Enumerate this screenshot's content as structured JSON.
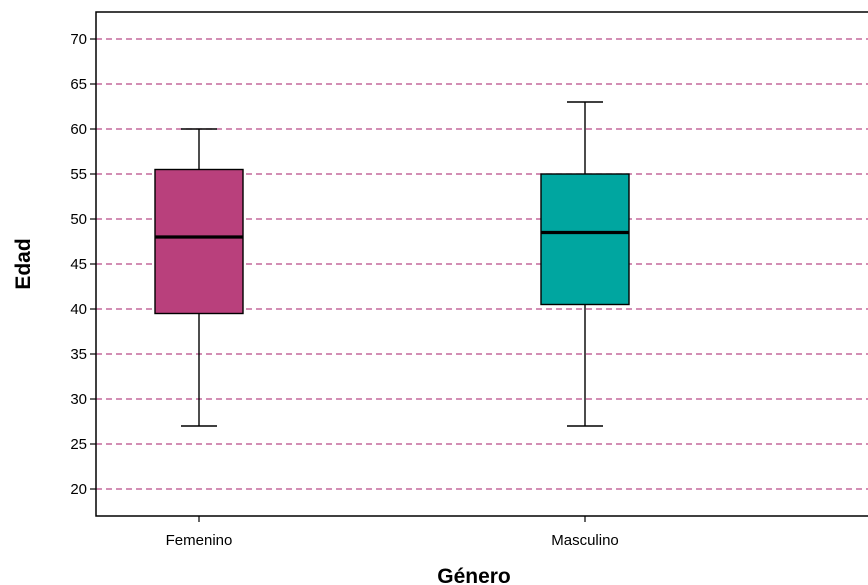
{
  "chart_data": {
    "type": "boxplot",
    "xlabel": "Género",
    "ylabel": "Edad",
    "ylim": [
      17,
      73
    ],
    "yticks": [
      20,
      25,
      30,
      35,
      40,
      45,
      50,
      55,
      60,
      65,
      70
    ],
    "grid": "horizontal dashed",
    "gridColor": "#b94a86",
    "categories": [
      "Femenino",
      "Masculino"
    ],
    "boxes": [
      {
        "category": "Femenino",
        "min": 27,
        "q1": 39.5,
        "median": 48,
        "q3": 55.5,
        "max": 60,
        "color": "#b9407c"
      },
      {
        "category": "Masculino",
        "min": 27,
        "q1": 40.5,
        "median": 48.5,
        "q3": 55,
        "max": 63,
        "color": "#00a6a0"
      }
    ]
  }
}
